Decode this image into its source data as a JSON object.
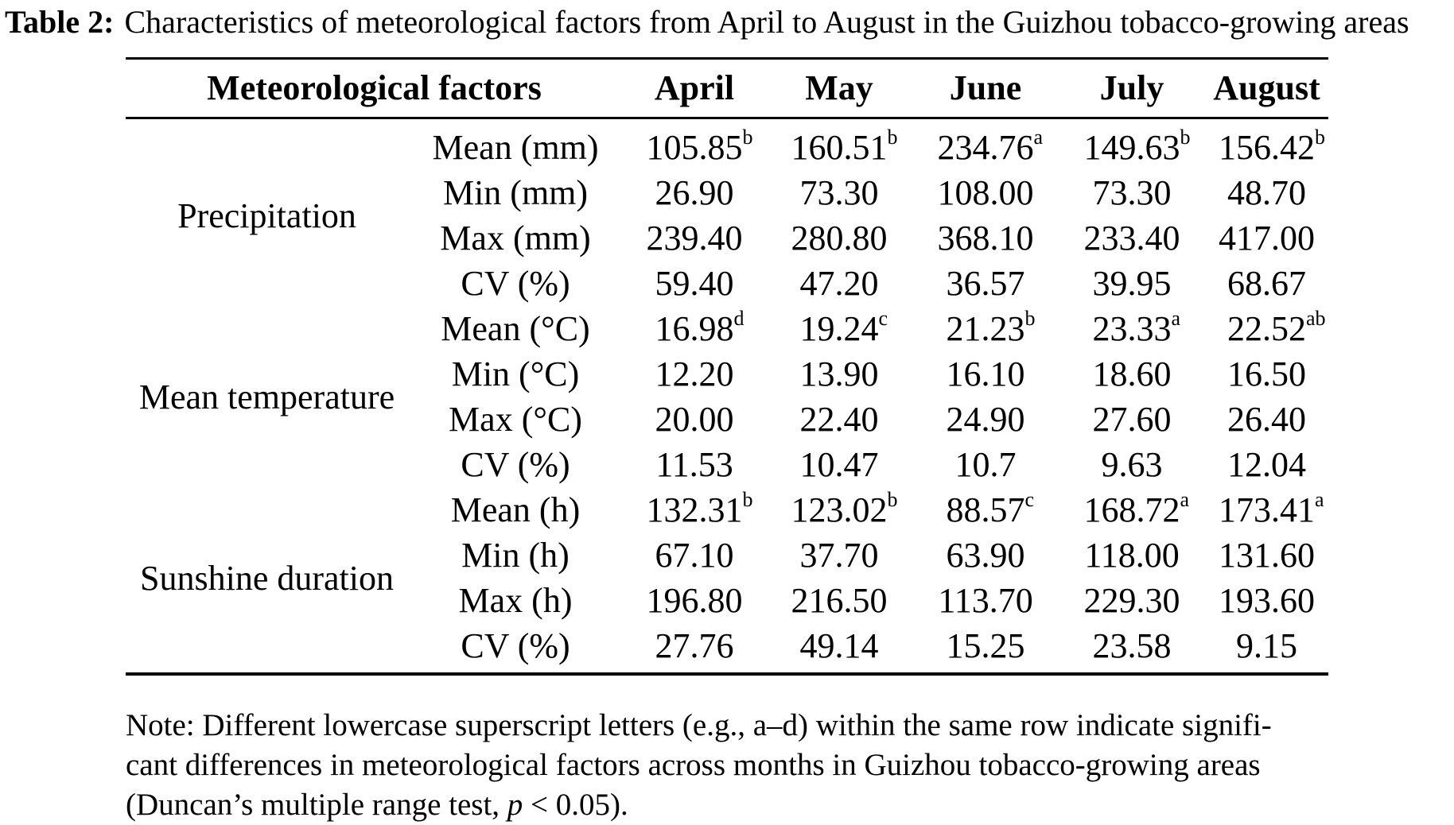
{
  "caption": {
    "label": "Table 2:",
    "text": "Characteristics of meteorological factors from April to August in the Guizhou tobacco-growing areas"
  },
  "table": {
    "header": {
      "factors_label": "Meteorological factors",
      "months": [
        "April",
        "May",
        "June",
        "July",
        "August"
      ]
    },
    "groups": [
      {
        "name": "Precipitation",
        "rows": [
          {
            "metric": "Mean (mm)",
            "values": [
              "105.85",
              "160.51",
              "234.76",
              "149.63",
              "156.42"
            ],
            "sups": [
              "b",
              "b",
              "a",
              "b",
              "b"
            ]
          },
          {
            "metric": "Min (mm)",
            "values": [
              "26.90",
              "73.30",
              "108.00",
              "73.30",
              "48.70"
            ],
            "sups": null
          },
          {
            "metric": "Max (mm)",
            "values": [
              "239.40",
              "280.80",
              "368.10",
              "233.40",
              "417.00"
            ],
            "sups": null
          },
          {
            "metric": "CV (%)",
            "values": [
              "59.40",
              "47.20",
              "36.57",
              "39.95",
              "68.67"
            ],
            "sups": null
          }
        ]
      },
      {
        "name": "Mean temperature",
        "rows": [
          {
            "metric": "Mean (°C)",
            "values": [
              "16.98",
              "19.24",
              "21.23",
              "23.33",
              "22.52"
            ],
            "sups": [
              "d",
              "c",
              "b",
              "a",
              "ab"
            ]
          },
          {
            "metric": "Min (°C)",
            "values": [
              "12.20",
              "13.90",
              "16.10",
              "18.60",
              "16.50"
            ],
            "sups": null
          },
          {
            "metric": "Max (°C)",
            "values": [
              "20.00",
              "22.40",
              "24.90",
              "27.60",
              "26.40"
            ],
            "sups": null
          },
          {
            "metric": "CV (%)",
            "values": [
              "11.53",
              "10.47",
              "10.7",
              "9.63",
              "12.04"
            ],
            "sups": null
          }
        ]
      },
      {
        "name": "Sunshine duration",
        "rows": [
          {
            "metric": "Mean (h)",
            "values": [
              "132.31",
              "123.02",
              "88.57",
              "168.72",
              "173.41"
            ],
            "sups": [
              "b",
              "b",
              "c",
              "a",
              "a"
            ]
          },
          {
            "metric": "Min (h)",
            "values": [
              "67.10",
              "37.70",
              "63.90",
              "118.00",
              "131.60"
            ],
            "sups": null
          },
          {
            "metric": "Max (h)",
            "values": [
              "196.80",
              "216.50",
              "113.70",
              "229.30",
              "193.60"
            ],
            "sups": null
          },
          {
            "metric": "CV (%)",
            "values": [
              "27.76",
              "49.14",
              "15.25",
              "23.58",
              "9.15"
            ],
            "sups": null
          }
        ]
      }
    ]
  },
  "note": {
    "lines": [
      {
        "pre": "Note: Different lowercase superscript letters (e.g., a–d) within the same row indicate signifi-",
        "italic": "",
        "post": ""
      },
      {
        "pre": "cant differences in meteorological factors across months in Guizhou tobacco-growing areas",
        "italic": "",
        "post": ""
      },
      {
        "pre": "(Duncan’s multiple range test, ",
        "italic": "p",
        "post": " < 0.05)."
      }
    ]
  }
}
